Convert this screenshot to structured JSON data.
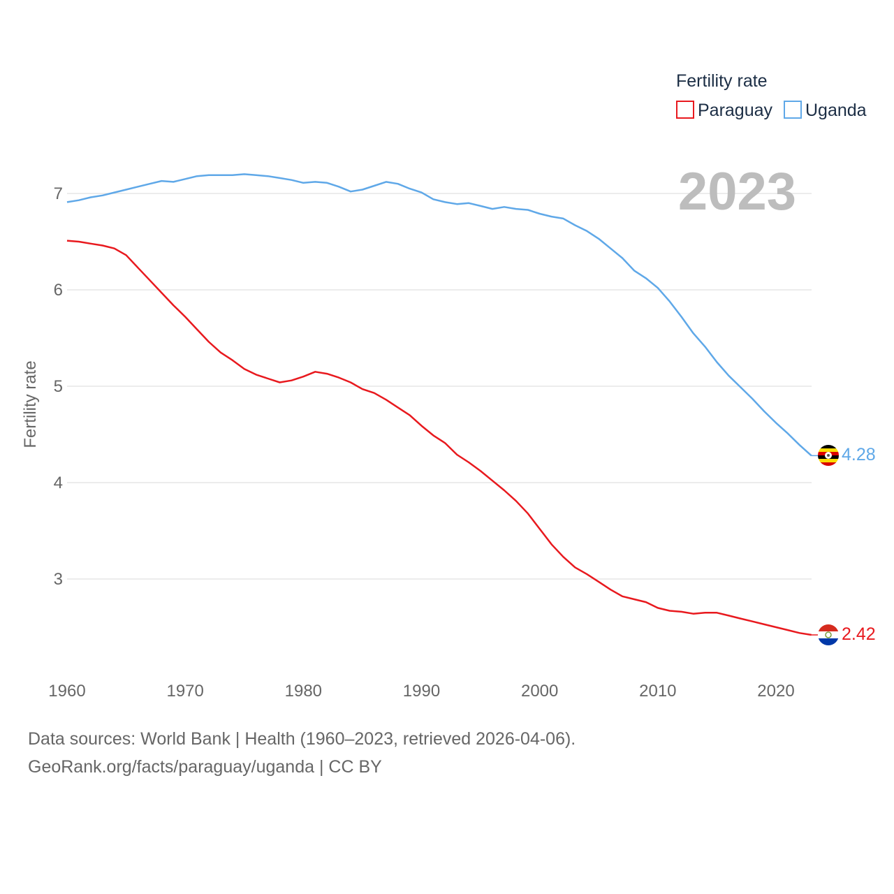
{
  "chart_data": {
    "type": "line",
    "title": "Fertility rate",
    "ylabel": "Fertility rate",
    "xlabel": "",
    "xlim": [
      1960,
      2023
    ],
    "ylim": [
      2.0,
      7.5
    ],
    "xticks": [
      1960,
      1970,
      1980,
      1990,
      2000,
      2010,
      2020
    ],
    "yticks": [
      3,
      4,
      5,
      6,
      7
    ],
    "year_label": "2023",
    "grid": true,
    "x": [
      1960,
      1961,
      1962,
      1963,
      1964,
      1965,
      1966,
      1967,
      1968,
      1969,
      1970,
      1971,
      1972,
      1973,
      1974,
      1975,
      1976,
      1977,
      1978,
      1979,
      1980,
      1981,
      1982,
      1983,
      1984,
      1985,
      1986,
      1987,
      1988,
      1989,
      1990,
      1991,
      1992,
      1993,
      1994,
      1995,
      1996,
      1997,
      1998,
      1999,
      2000,
      2001,
      2002,
      2003,
      2004,
      2005,
      2006,
      2007,
      2008,
      2009,
      2010,
      2011,
      2012,
      2013,
      2014,
      2015,
      2016,
      2017,
      2018,
      2019,
      2020,
      2021,
      2022,
      2023
    ],
    "series": [
      {
        "name": "Paraguay",
        "color": "#e8191e",
        "end_label": "2.42",
        "values": [
          6.51,
          6.5,
          6.48,
          6.46,
          6.43,
          6.36,
          6.23,
          6.1,
          5.97,
          5.84,
          5.72,
          5.59,
          5.46,
          5.35,
          5.27,
          5.18,
          5.12,
          5.08,
          5.04,
          5.06,
          5.1,
          5.15,
          5.13,
          5.09,
          5.04,
          4.97,
          4.93,
          4.86,
          4.78,
          4.7,
          4.59,
          4.49,
          4.41,
          4.29,
          4.21,
          4.12,
          4.02,
          3.92,
          3.81,
          3.68,
          3.52,
          3.36,
          3.23,
          3.12,
          3.05,
          2.97,
          2.89,
          2.82,
          2.79,
          2.76,
          2.7,
          2.67,
          2.66,
          2.64,
          2.65,
          2.65,
          2.62,
          2.59,
          2.56,
          2.53,
          2.5,
          2.47,
          2.44,
          2.42
        ]
      },
      {
        "name": "Uganda",
        "color": "#5fa8e8",
        "end_label": "4.28",
        "values": [
          6.91,
          6.93,
          6.96,
          6.98,
          7.01,
          7.04,
          7.07,
          7.1,
          7.13,
          7.12,
          7.15,
          7.18,
          7.19,
          7.19,
          7.19,
          7.2,
          7.19,
          7.18,
          7.16,
          7.14,
          7.11,
          7.12,
          7.11,
          7.07,
          7.02,
          7.04,
          7.08,
          7.12,
          7.1,
          7.05,
          7.01,
          6.94,
          6.91,
          6.89,
          6.9,
          6.87,
          6.84,
          6.86,
          6.84,
          6.83,
          6.79,
          6.76,
          6.74,
          6.67,
          6.61,
          6.53,
          6.43,
          6.33,
          6.2,
          6.12,
          6.02,
          5.88,
          5.72,
          5.55,
          5.41,
          5.25,
          5.11,
          4.99,
          4.87,
          4.74,
          4.62,
          4.51,
          4.39,
          4.28
        ]
      }
    ]
  },
  "legend": {
    "title": "Fertility rate",
    "items": [
      "Paraguay",
      "Uganda"
    ]
  },
  "footer": {
    "line1": "Data sources: World Bank | Health (1960–2023, retrieved 2026-04-06).",
    "line2": "GeoRank.org/facts/paraguay/uganda | CC BY"
  }
}
